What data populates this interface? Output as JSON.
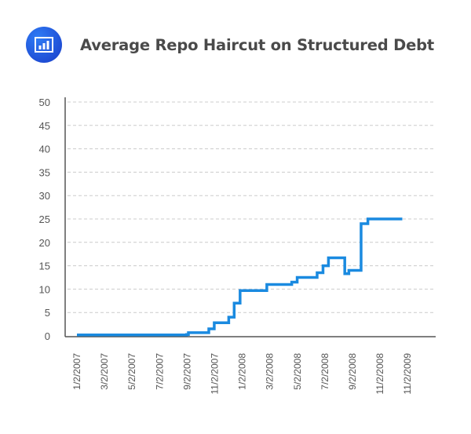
{
  "header": {
    "icon": "bar-chart-icon",
    "title": "Average Repo Haircut on Structured Debt"
  },
  "colors": {
    "line": "#1a8ae0",
    "icon_bg": "#1f56dc",
    "grid": "#cccccc",
    "axis": "#555555",
    "title": "#4a4a4a"
  },
  "chart_data": {
    "type": "line",
    "title": "Average Repo Haircut on Structured Debt",
    "xlabel": "",
    "ylabel": "",
    "ylim": [
      0,
      50
    ],
    "yticks": [
      0,
      5,
      10,
      15,
      20,
      25,
      30,
      35,
      40,
      45,
      50
    ],
    "xtick_labels": [
      "1/2/2007",
      "3/2/2007",
      "5/2/2007",
      "7/2/2007",
      "9/2/2007",
      "11/2/2007",
      "1/2/2008",
      "3/2/2008",
      "5/2/2008",
      "7/2/2008",
      "9/2/2008",
      "11/2/2008",
      "11/2/2009"
    ],
    "grid": "horizontal dashed",
    "legend": "none",
    "series": [
      {
        "name": "Average Repo Haircut",
        "step": true,
        "points": [
          {
            "x": "1/2/2007",
            "y": 0.2
          },
          {
            "x": "9/1/2007",
            "y": 0.3
          },
          {
            "x": "9/5/2007",
            "y": 0.7
          },
          {
            "x": "10/20/2007",
            "y": 1.5
          },
          {
            "x": "11/1/2007",
            "y": 2.8
          },
          {
            "x": "12/3/2007",
            "y": 4.0
          },
          {
            "x": "12/15/2007",
            "y": 7.0
          },
          {
            "x": "12/28/2007",
            "y": 9.7
          },
          {
            "x": "2/25/2008",
            "y": 11.0
          },
          {
            "x": "4/20/2008",
            "y": 11.5
          },
          {
            "x": "5/2/2008",
            "y": 12.5
          },
          {
            "x": "6/15/2008",
            "y": 13.5
          },
          {
            "x": "6/28/2008",
            "y": 15.0
          },
          {
            "x": "7/10/2008",
            "y": 16.7
          },
          {
            "x": "8/15/2008",
            "y": 13.3
          },
          {
            "x": "8/24/2008",
            "y": 14.0
          },
          {
            "x": "9/20/2008",
            "y": 24.0
          },
          {
            "x": "10/5/2008",
            "y": 25.0
          },
          {
            "x": "12/20/2008",
            "y": 25.0
          }
        ]
      }
    ]
  }
}
